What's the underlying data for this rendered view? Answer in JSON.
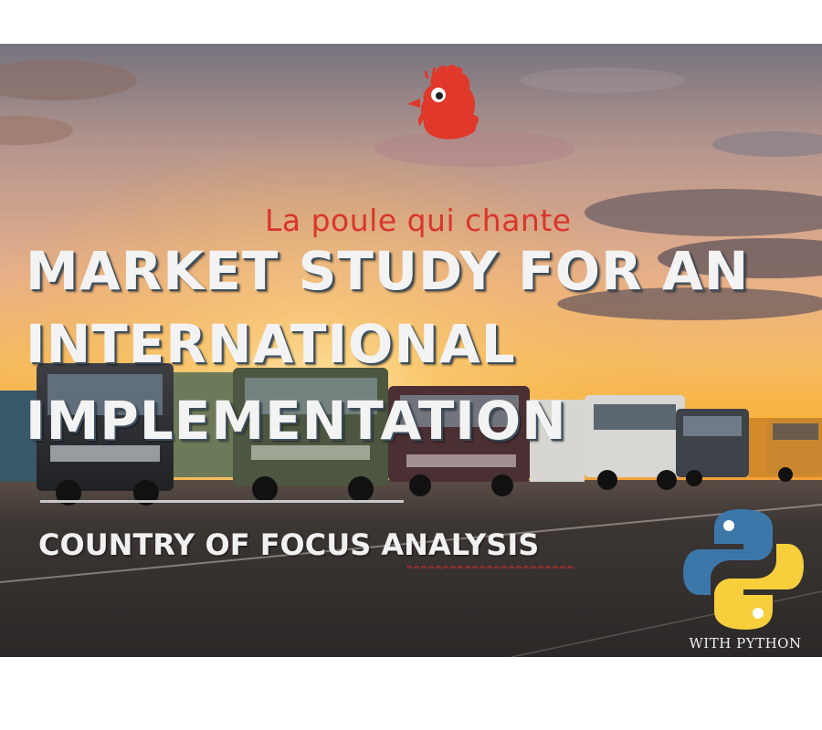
{
  "brand": {
    "name": "La poule qui chante",
    "logo_icon": "hen-icon",
    "color": "#d9362b"
  },
  "title": {
    "line1": "MARKET STUDY FOR AN",
    "line2": "INTERNATIONAL",
    "line3": "IMPLEMENTATION"
  },
  "subtitle": "COUNTRY OF FOCUS ANALYSIS",
  "python_badge": {
    "icon": "python-logo-icon",
    "caption": "WITH PYTHON",
    "colors": {
      "blue": "#3c77a9",
      "yellow": "#f7cf3d"
    }
  },
  "background": {
    "scene": "trucks-at-sunset",
    "colors": {
      "sky_top": "#6e6e7d",
      "horizon": "#f9b33a",
      "ground": "#3a3634"
    }
  }
}
